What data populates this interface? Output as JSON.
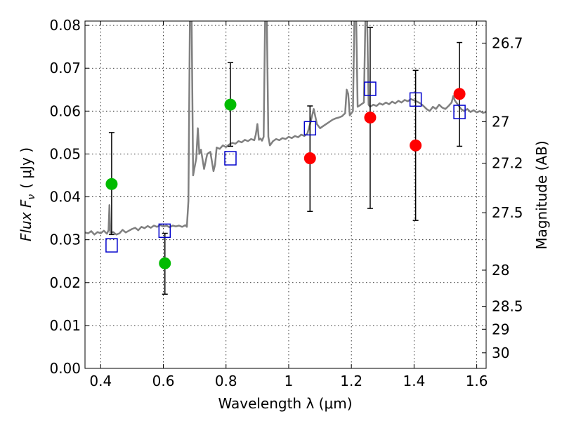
{
  "chart_data": {
    "type": "scatter",
    "xlabel": "Wavelength  λ (μm)",
    "ylabel": "Flux  F",
    "ylabel_sub": "ν",
    "ylabel_unit": "( μJy )",
    "y2label": "Magnitude (AB)",
    "xlim": [
      0.35,
      1.63
    ],
    "ylim": [
      0.0,
      0.081
    ],
    "grid": true,
    "x_ticks": [
      {
        "value": 0.4,
        "label": "0.4"
      },
      {
        "value": 0.6,
        "label": "0.6"
      },
      {
        "value": 0.8,
        "label": "0.8"
      },
      {
        "value": 1.0,
        "label": "1"
      },
      {
        "value": 1.2,
        "label": "1.2"
      },
      {
        "value": 1.4,
        "label": "1.4"
      },
      {
        "value": 1.6,
        "label": "1.6"
      }
    ],
    "y_ticks": [
      {
        "value": 0.0,
        "label": "0.00"
      },
      {
        "value": 0.01,
        "label": "0.01"
      },
      {
        "value": 0.02,
        "label": "0.02"
      },
      {
        "value": 0.03,
        "label": "0.03"
      },
      {
        "value": 0.04,
        "label": "0.04"
      },
      {
        "value": 0.05,
        "label": "0.05"
      },
      {
        "value": 0.06,
        "label": "0.06"
      },
      {
        "value": 0.07,
        "label": "0.07"
      },
      {
        "value": 0.08,
        "label": "0.08"
      }
    ],
    "mag_ticks": [
      {
        "mag": 26.7,
        "label": "26.7"
      },
      {
        "mag": 27.0,
        "label": "27"
      },
      {
        "mag": 27.2,
        "label": "27.2"
      },
      {
        "mag": 27.5,
        "label": "27.5"
      },
      {
        "mag": 28.0,
        "label": "28"
      },
      {
        "mag": 28.5,
        "label": "28.5"
      },
      {
        "mag": 29.0,
        "label": "29"
      },
      {
        "mag": 30.0,
        "label": "30"
      }
    ],
    "model_spectrum": {
      "name": "model SED",
      "color": "#808080",
      "points": [
        [
          0.35,
          0.0317
        ],
        [
          0.36,
          0.0315
        ],
        [
          0.37,
          0.032
        ],
        [
          0.38,
          0.0312
        ],
        [
          0.39,
          0.0318
        ],
        [
          0.4,
          0.0315
        ],
        [
          0.41,
          0.0321
        ],
        [
          0.42,
          0.0314
        ],
        [
          0.425,
          0.0322
        ],
        [
          0.428,
          0.0381
        ],
        [
          0.431,
          0.0316
        ],
        [
          0.44,
          0.0318
        ],
        [
          0.45,
          0.0312
        ],
        [
          0.46,
          0.0315
        ],
        [
          0.47,
          0.0323
        ],
        [
          0.48,
          0.0317
        ],
        [
          0.49,
          0.0321
        ],
        [
          0.5,
          0.0325
        ],
        [
          0.51,
          0.0328
        ],
        [
          0.52,
          0.0322
        ],
        [
          0.53,
          0.033
        ],
        [
          0.54,
          0.0327
        ],
        [
          0.55,
          0.0332
        ],
        [
          0.56,
          0.0328
        ],
        [
          0.57,
          0.0333
        ],
        [
          0.58,
          0.033
        ],
        [
          0.59,
          0.0334
        ],
        [
          0.6,
          0.0331
        ],
        [
          0.61,
          0.0333
        ],
        [
          0.62,
          0.0329
        ],
        [
          0.63,
          0.0333
        ],
        [
          0.64,
          0.0331
        ],
        [
          0.65,
          0.0333
        ],
        [
          0.66,
          0.033
        ],
        [
          0.67,
          0.0334
        ],
        [
          0.675,
          0.033
        ],
        [
          0.68,
          0.039
        ],
        [
          0.685,
          0.083
        ],
        [
          0.69,
          0.083
        ],
        [
          0.695,
          0.045
        ],
        [
          0.7,
          0.047
        ],
        [
          0.705,
          0.049
        ],
        [
          0.71,
          0.056
        ],
        [
          0.715,
          0.05
        ],
        [
          0.72,
          0.051
        ],
        [
          0.73,
          0.0465
        ],
        [
          0.74,
          0.05
        ],
        [
          0.75,
          0.0505
        ],
        [
          0.76,
          0.046
        ],
        [
          0.765,
          0.0475
        ],
        [
          0.77,
          0.0515
        ],
        [
          0.78,
          0.0512
        ],
        [
          0.79,
          0.052
        ],
        [
          0.8,
          0.0516
        ],
        [
          0.81,
          0.0522
        ],
        [
          0.82,
          0.0526
        ],
        [
          0.83,
          0.0524
        ],
        [
          0.84,
          0.053
        ],
        [
          0.85,
          0.0527
        ],
        [
          0.86,
          0.0533
        ],
        [
          0.87,
          0.053
        ],
        [
          0.88,
          0.0535
        ],
        [
          0.89,
          0.0532
        ],
        [
          0.895,
          0.0545
        ],
        [
          0.9,
          0.057
        ],
        [
          0.905,
          0.0533
        ],
        [
          0.91,
          0.0536
        ],
        [
          0.915,
          0.0531
        ],
        [
          0.92,
          0.054
        ],
        [
          0.925,
          0.083
        ],
        [
          0.93,
          0.083
        ],
        [
          0.935,
          0.054
        ],
        [
          0.94,
          0.052
        ],
        [
          0.95,
          0.053
        ],
        [
          0.96,
          0.0535
        ],
        [
          0.97,
          0.0532
        ],
        [
          0.98,
          0.0537
        ],
        [
          0.99,
          0.0535
        ],
        [
          1.0,
          0.054
        ],
        [
          1.01,
          0.0537
        ],
        [
          1.02,
          0.0542
        ],
        [
          1.03,
          0.0539
        ],
        [
          1.04,
          0.0545
        ],
        [
          1.05,
          0.0542
        ],
        [
          1.06,
          0.0548
        ],
        [
          1.07,
          0.0575
        ],
        [
          1.08,
          0.0605
        ],
        [
          1.09,
          0.057
        ],
        [
          1.1,
          0.056
        ],
        [
          1.11,
          0.0565
        ],
        [
          1.12,
          0.057
        ],
        [
          1.13,
          0.0575
        ],
        [
          1.14,
          0.058
        ],
        [
          1.15,
          0.0583
        ],
        [
          1.16,
          0.0585
        ],
        [
          1.17,
          0.0588
        ],
        [
          1.18,
          0.0595
        ],
        [
          1.185,
          0.065
        ],
        [
          1.19,
          0.064
        ],
        [
          1.195,
          0.059
        ],
        [
          1.2,
          0.0595
        ],
        [
          1.205,
          0.06
        ],
        [
          1.21,
          0.083
        ],
        [
          1.215,
          0.083
        ],
        [
          1.22,
          0.061
        ],
        [
          1.23,
          0.0615
        ],
        [
          1.24,
          0.062
        ],
        [
          1.245,
          0.083
        ],
        [
          1.25,
          0.083
        ],
        [
          1.255,
          0.0615
        ],
        [
          1.26,
          0.061
        ],
        [
          1.27,
          0.0615
        ],
        [
          1.28,
          0.0612
        ],
        [
          1.29,
          0.0618
        ],
        [
          1.3,
          0.0615
        ],
        [
          1.31,
          0.062
        ],
        [
          1.32,
          0.0616
        ],
        [
          1.33,
          0.0622
        ],
        [
          1.34,
          0.0618
        ],
        [
          1.35,
          0.0624
        ],
        [
          1.36,
          0.062
        ],
        [
          1.37,
          0.0626
        ],
        [
          1.38,
          0.0623
        ],
        [
          1.39,
          0.0628
        ],
        [
          1.4,
          0.0625
        ],
        [
          1.41,
          0.0622
        ],
        [
          1.42,
          0.0618
        ],
        [
          1.43,
          0.0612
        ],
        [
          1.44,
          0.0605
        ],
        [
          1.45,
          0.06
        ],
        [
          1.46,
          0.061
        ],
        [
          1.47,
          0.0605
        ],
        [
          1.48,
          0.0615
        ],
        [
          1.49,
          0.0608
        ],
        [
          1.5,
          0.0605
        ],
        [
          1.51,
          0.0612
        ],
        [
          1.52,
          0.062
        ],
        [
          1.525,
          0.0635
        ],
        [
          1.53,
          0.0625
        ],
        [
          1.54,
          0.0615
        ],
        [
          1.55,
          0.0605
        ],
        [
          1.56,
          0.06
        ],
        [
          1.57,
          0.0605
        ],
        [
          1.58,
          0.0598
        ],
        [
          1.59,
          0.0602
        ],
        [
          1.6,
          0.0597
        ],
        [
          1.61,
          0.06
        ],
        [
          1.62,
          0.0596
        ],
        [
          1.63,
          0.0598
        ]
      ]
    },
    "series": [
      {
        "name": "green detections",
        "marker": "circle",
        "color": "#00bb00",
        "points": [
          {
            "x": 0.435,
            "y": 0.043
          },
          {
            "x": 0.605,
            "y": 0.0245
          },
          {
            "x": 0.814,
            "y": 0.0615
          }
        ]
      },
      {
        "name": "red detections",
        "marker": "circle",
        "color": "#ff0000",
        "points": [
          {
            "x": 1.068,
            "y": 0.049
          },
          {
            "x": 1.26,
            "y": 0.0585
          },
          {
            "x": 1.405,
            "y": 0.052
          },
          {
            "x": 1.545,
            "y": 0.064
          }
        ]
      },
      {
        "name": "model photometry",
        "marker": "square-open",
        "color": "#0000cc",
        "points": [
          {
            "x": 0.435,
            "y": 0.0287
          },
          {
            "x": 0.604,
            "y": 0.0321
          },
          {
            "x": 0.814,
            "y": 0.049
          },
          {
            "x": 1.068,
            "y": 0.056
          },
          {
            "x": 1.26,
            "y": 0.0652
          },
          {
            "x": 1.405,
            "y": 0.0627
          },
          {
            "x": 1.545,
            "y": 0.0598
          }
        ]
      }
    ],
    "error_bars": [
      {
        "x": 0.435,
        "low": 0.0312,
        "high": 0.055
      },
      {
        "x": 0.605,
        "low": 0.0173,
        "high": 0.0315
      },
      {
        "x": 0.814,
        "low": 0.0518,
        "high": 0.0713
      },
      {
        "x": 1.068,
        "low": 0.0366,
        "high": 0.0612
      },
      {
        "x": 1.26,
        "low": 0.0373,
        "high": 0.0795
      },
      {
        "x": 1.405,
        "low": 0.0345,
        "high": 0.0695
      },
      {
        "x": 1.545,
        "low": 0.0518,
        "high": 0.076
      }
    ]
  }
}
